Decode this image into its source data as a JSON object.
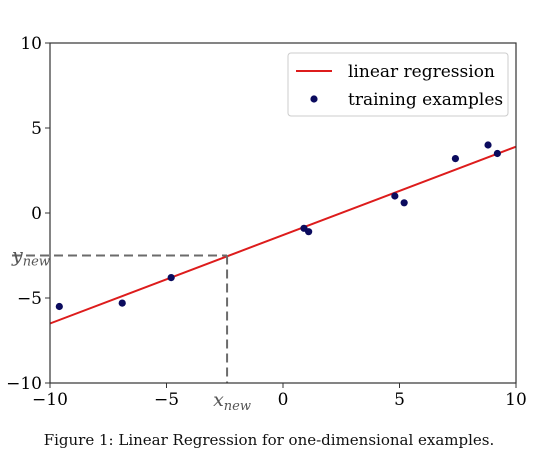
{
  "caption": "Figure 1: Linear Regression for one-dimensional examples.",
  "chart_data": {
    "type": "scatter",
    "xlim": [
      -10,
      10
    ],
    "ylim": [
      -10,
      10
    ],
    "xticks": [
      -10,
      -5,
      0,
      5,
      10
    ],
    "yticks": [
      -10,
      -5,
      0,
      5,
      10
    ],
    "xtick_labels": [
      "−10",
      "−5",
      "0",
      "5",
      "10"
    ],
    "ytick_labels": [
      "−10",
      "−5",
      "0",
      "5",
      "10"
    ],
    "grid": false,
    "legend_position": "top-right",
    "series": [
      {
        "name": "linear regression",
        "kind": "line",
        "color": "#dd1c1c",
        "x": [
          -10,
          10
        ],
        "y": [
          -6.5,
          3.9
        ]
      },
      {
        "name": "training examples",
        "kind": "scatter",
        "color": "#0b0b5e",
        "x": [
          -9.6,
          -6.9,
          -4.8,
          0.9,
          1.1,
          4.8,
          5.2,
          7.4,
          8.8,
          9.2
        ],
        "y": [
          -5.5,
          -5.3,
          -3.8,
          -0.9,
          -1.1,
          1.0,
          0.6,
          3.2,
          4.0,
          3.5
        ]
      }
    ],
    "annotations": {
      "x_new": {
        "label": "x",
        "subscript": "new",
        "value": -2.4
      },
      "y_new": {
        "label": "y",
        "subscript": "new",
        "value": -2.5
      }
    }
  }
}
